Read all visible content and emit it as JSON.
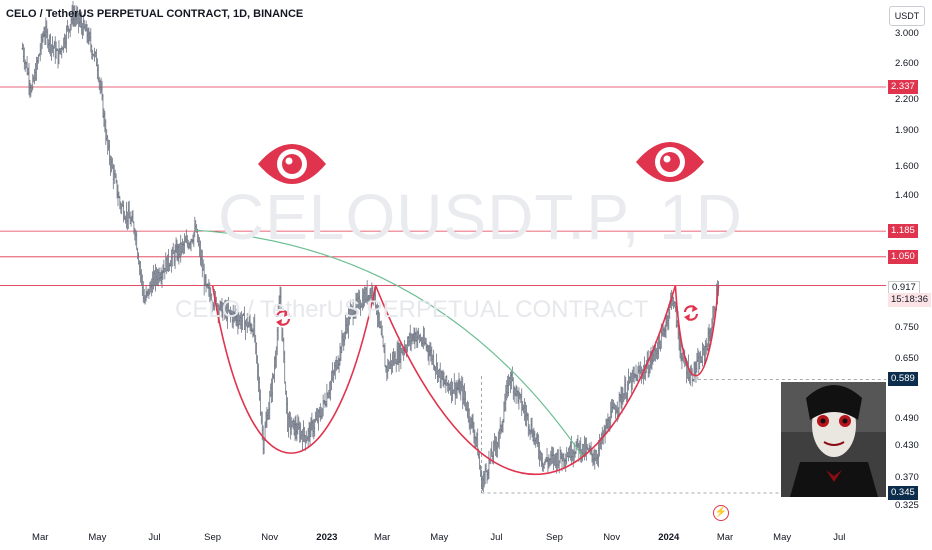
{
  "title": "CELO / TetherUS PERPETUAL CONTRACT, 1D, BINANCE",
  "watermark": {
    "symbol": "CELOUSDT.P, 1D",
    "name": "CELO / TetherUS PERPETUAL CONTRACT"
  },
  "currency": "USDT",
  "colors": {
    "up": "#26a69a",
    "down": "#ef5350",
    "bars": "#6b7280",
    "annotation": "#e0344e",
    "arc": "#6fbf94"
  },
  "icons": [
    "eye-icon",
    "eye-icon",
    "refresh-icon",
    "refresh-icon",
    "lightning-icon"
  ],
  "chart_data": {
    "type": "candlestick",
    "y_scale": "log",
    "ylim": [
      0.32,
      3.45
    ],
    "y_ticks": [
      "3.000",
      "2.600",
      "2.200",
      "1.900",
      "1.600",
      "1.400",
      "0.750",
      "0.650",
      "0.490",
      "0.430",
      "0.370",
      "0.325"
    ],
    "x_ticks": [
      "Mar",
      "May",
      "Jul",
      "Sep",
      "Nov",
      "2023",
      "Mar",
      "May",
      "Jul",
      "Sep",
      "Nov",
      "2024",
      "Mar",
      "May",
      "Jul"
    ],
    "horizontal_levels": [
      {
        "value": 2.337,
        "label": "2.337"
      },
      {
        "value": 1.185,
        "label": "1.185"
      },
      {
        "value": 1.05,
        "label": "1.050"
      },
      {
        "value": 0.917,
        "label": "0.917"
      }
    ],
    "dashed_levels": [
      {
        "value": 0.589,
        "label": "0.589"
      },
      {
        "value": 0.345,
        "label": "0.345"
      }
    ],
    "last_price": {
      "value": 0.917,
      "label": "0.917",
      "countdown": "15:18:36"
    },
    "high_marker": {
      "value": 0.923,
      "label": "0.923"
    },
    "price_path": [
      [
        "2022-02-10",
        2.8
      ],
      [
        "2022-02-20",
        2.3
      ],
      [
        "2022-03-05",
        3.05
      ],
      [
        "2022-03-20",
        2.7
      ],
      [
        "2022-04-05",
        3.3
      ],
      [
        "2022-04-20",
        3.0
      ],
      [
        "2022-05-01",
        2.6
      ],
      [
        "2022-05-12",
        1.75
      ],
      [
        "2022-05-25",
        1.35
      ],
      [
        "2022-06-10",
        1.2
      ],
      [
        "2022-06-20",
        0.85
      ],
      [
        "2022-07-01",
        0.95
      ],
      [
        "2022-07-20",
        1.05
      ],
      [
        "2022-08-05",
        1.12
      ],
      [
        "2022-08-14",
        1.19
      ],
      [
        "2022-08-25",
        0.9
      ],
      [
        "2022-09-10",
        0.82
      ],
      [
        "2022-10-01",
        0.78
      ],
      [
        "2022-10-15",
        0.75
      ],
      [
        "2022-10-25",
        0.44
      ],
      [
        "2022-11-05",
        0.6
      ],
      [
        "2022-11-12",
        0.87
      ],
      [
        "2022-11-20",
        0.48
      ],
      [
        "2022-12-10",
        0.45
      ],
      [
        "2022-12-25",
        0.5
      ],
      [
        "2023-01-10",
        0.62
      ],
      [
        "2023-01-25",
        0.8
      ],
      [
        "2023-02-10",
        0.87
      ],
      [
        "2023-02-20",
        0.9
      ],
      [
        "2023-03-05",
        0.62
      ],
      [
        "2023-03-20",
        0.67
      ],
      [
        "2023-04-05",
        0.73
      ],
      [
        "2023-04-20",
        0.68
      ],
      [
        "2023-05-05",
        0.58
      ],
      [
        "2023-05-25",
        0.56
      ],
      [
        "2023-06-10",
        0.44
      ],
      [
        "2023-06-15",
        0.36
      ],
      [
        "2023-07-05",
        0.46
      ],
      [
        "2023-07-15",
        0.6
      ],
      [
        "2023-08-05",
        0.48
      ],
      [
        "2023-08-20",
        0.4
      ],
      [
        "2023-09-10",
        0.41
      ],
      [
        "2023-09-25",
        0.43
      ],
      [
        "2023-10-15",
        0.41
      ],
      [
        "2023-11-01",
        0.5
      ],
      [
        "2023-11-20",
        0.58
      ],
      [
        "2023-12-10",
        0.63
      ],
      [
        "2023-12-25",
        0.72
      ],
      [
        "2024-01-05",
        0.88
      ],
      [
        "2024-01-15",
        0.65
      ],
      [
        "2024-01-25",
        0.6
      ],
      [
        "2024-02-05",
        0.65
      ],
      [
        "2024-02-15",
        0.74
      ],
      [
        "2024-02-23",
        0.923
      ]
    ]
  }
}
